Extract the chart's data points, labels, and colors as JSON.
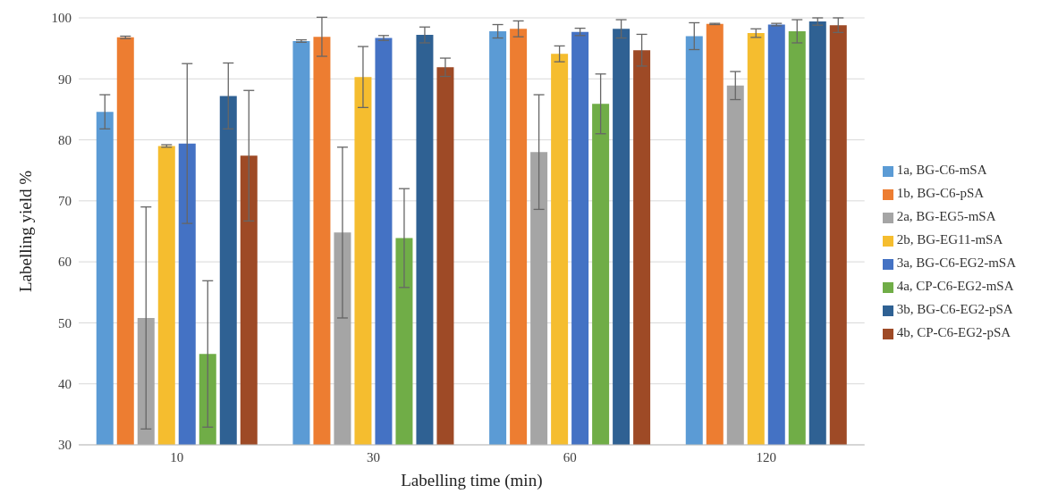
{
  "chart_data": {
    "type": "bar",
    "xlabel": "Labelling time (min)",
    "ylabel": "Labelling yield %",
    "categories": [
      "10",
      "30",
      "60",
      "120"
    ],
    "ylim": [
      30,
      100
    ],
    "yticks": [
      30,
      40,
      50,
      60,
      70,
      80,
      90,
      100
    ],
    "grid": "y",
    "legend": "right",
    "series": [
      {
        "name": "1a, BG-C6-mSA",
        "color": "#5b9bd5",
        "values": [
          84.6,
          96.2,
          97.8,
          97.0
        ],
        "errors": [
          2.8,
          0.2,
          1.1,
          2.2
        ]
      },
      {
        "name": "1b, BG-C6-pSA",
        "color": "#ed7d31",
        "values": [
          96.8,
          96.9,
          98.2,
          99.0
        ],
        "errors": [
          0.2,
          3.2,
          1.3,
          0.1
        ]
      },
      {
        "name": "2a, BG-EG5-mSA",
        "color": "#a5a5a5",
        "values": [
          50.8,
          64.8,
          78.0,
          88.9
        ],
        "errors": [
          18.2,
          14.0,
          9.4,
          2.3
        ]
      },
      {
        "name": "2b, BG-EG11-mSA",
        "color": "#f5bd2f",
        "values": [
          79.0,
          90.3,
          94.1,
          97.5
        ],
        "errors": [
          0.2,
          5.0,
          1.3,
          0.7
        ]
      },
      {
        "name": "3a, BG-C6-EG2-mSA",
        "color": "#4472c4",
        "values": [
          79.4,
          96.7,
          97.7,
          98.9
        ],
        "errors": [
          13.1,
          0.4,
          0.6,
          0.2
        ]
      },
      {
        "name": "4a, CP-C6-EG2-mSA",
        "color": "#70ad47",
        "values": [
          44.9,
          63.9,
          85.9,
          97.8
        ],
        "errors": [
          12.0,
          8.1,
          4.9,
          1.9
        ]
      },
      {
        "name": "3b, BG-C6-EG2-pSA",
        "color": "#2f6193",
        "values": [
          87.2,
          97.2,
          98.2,
          99.4
        ],
        "errors": [
          5.4,
          1.3,
          1.5,
          0.6
        ]
      },
      {
        "name": "4b, CP-C6-EG2-pSA",
        "color": "#9e4a26",
        "values": [
          77.4,
          91.9,
          94.7,
          98.8
        ],
        "errors": [
          10.7,
          1.5,
          2.6,
          1.2
        ]
      }
    ]
  }
}
